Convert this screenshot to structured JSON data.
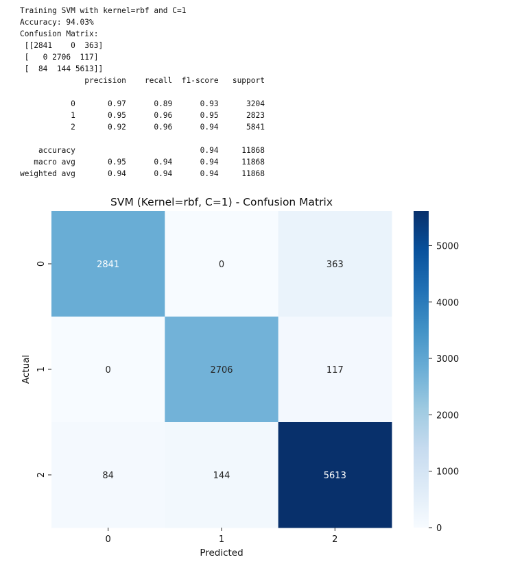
{
  "console_output": {
    "lines": [
      "Training SVM with kernel=rbf and C=1",
      "Accuracy: 94.03%",
      "Confusion Matrix:",
      " [[2841    0  363]",
      " [   0 2706  117]",
      " [  84  144 5613]]",
      "              precision    recall  f1-score   support",
      "",
      "           0       0.97      0.89      0.93      3204",
      "           1       0.95      0.96      0.95      2823",
      "           2       0.92      0.96      0.94      5841",
      "",
      "    accuracy                           0.94     11868",
      "   macro avg       0.95      0.94      0.94     11868",
      "weighted avg       0.94      0.94      0.94     11868"
    ]
  },
  "chart_data": {
    "type": "heatmap",
    "title": "SVM (Kernel=rbf, C=1) - Confusion Matrix",
    "xlabel": "Predicted",
    "ylabel": "Actual",
    "x_categories": [
      "0",
      "1",
      "2"
    ],
    "y_categories": [
      "0",
      "1",
      "2"
    ],
    "values": [
      [
        2841,
        0,
        363
      ],
      [
        0,
        2706,
        117
      ],
      [
        84,
        144,
        5613
      ]
    ],
    "colormap": "Blues",
    "colormap_stops": [
      "#f7fbff",
      "#deebf7",
      "#c6dbef",
      "#9ecae1",
      "#6baed6",
      "#4292c6",
      "#2171b5",
      "#08519c",
      "#08306b"
    ],
    "vmin": 0,
    "vmax": 5613,
    "annotation_threshold": 2806.5,
    "colorbar_ticks": [
      0,
      1000,
      2000,
      3000,
      4000,
      5000
    ]
  }
}
